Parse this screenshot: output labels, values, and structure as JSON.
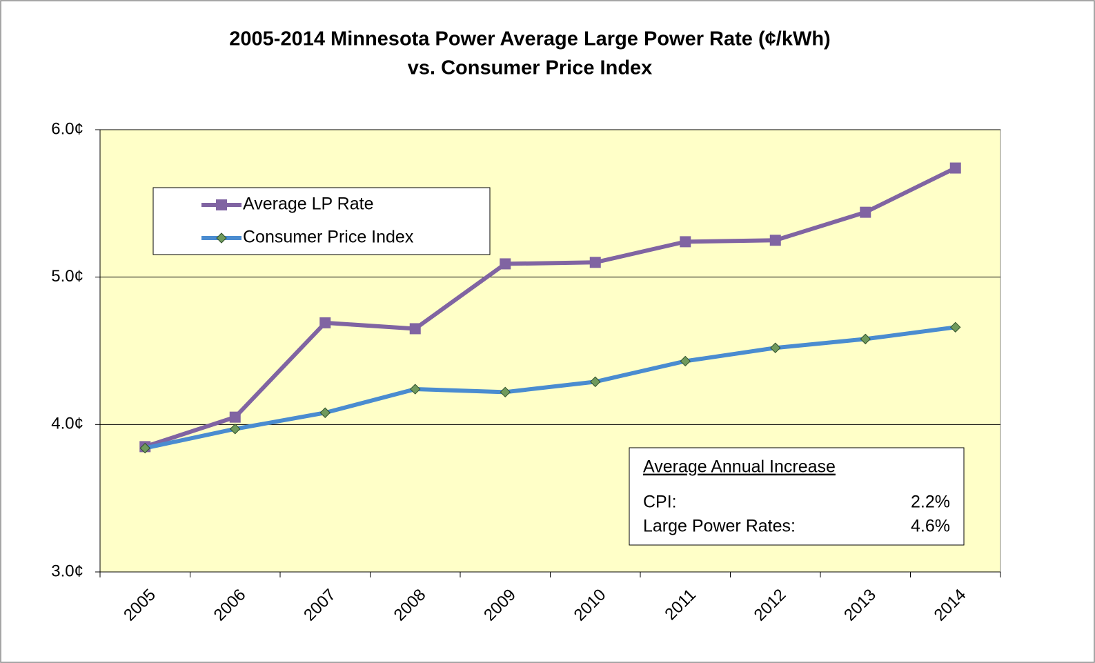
{
  "chart_data": {
    "type": "line",
    "title_lines": [
      "2005-2014 Minnesota Power Average Large Power Rate (¢/kWh)",
      "vs. Consumer Price Index"
    ],
    "categories": [
      "2005",
      "2006",
      "2007",
      "2008",
      "2009",
      "2010",
      "2011",
      "2012",
      "2013",
      "2014"
    ],
    "series": [
      {
        "name": "Average LP Rate",
        "color": "#8064a2",
        "marker": "square",
        "marker_color": "#8064a2",
        "values": [
          3.85,
          4.05,
          4.69,
          4.65,
          5.09,
          5.1,
          5.24,
          5.25,
          5.44,
          5.74
        ]
      },
      {
        "name": "Consumer Price Index",
        "color": "#4a8cd0",
        "marker": "diamond",
        "marker_color": "#6f9a5c",
        "values": [
          3.84,
          3.97,
          4.08,
          4.24,
          4.22,
          4.29,
          4.43,
          4.52,
          4.58,
          4.66
        ]
      }
    ],
    "ylim": [
      3,
      6
    ],
    "yticks": [
      {
        "value": 3,
        "label": "3.0¢"
      },
      {
        "value": 4,
        "label": "4.0¢"
      },
      {
        "value": 5,
        "label": "5.0¢"
      },
      {
        "value": 6,
        "label": "6.0¢"
      }
    ],
    "grid": true,
    "plot_background": "#ffffc8",
    "legend": "upper left",
    "annotation": {
      "heading": "Average Annual Increase",
      "rows": [
        [
          "CPI:",
          "2.2%"
        ],
        [
          "Large Power Rates:",
          "4.6%"
        ]
      ]
    }
  }
}
